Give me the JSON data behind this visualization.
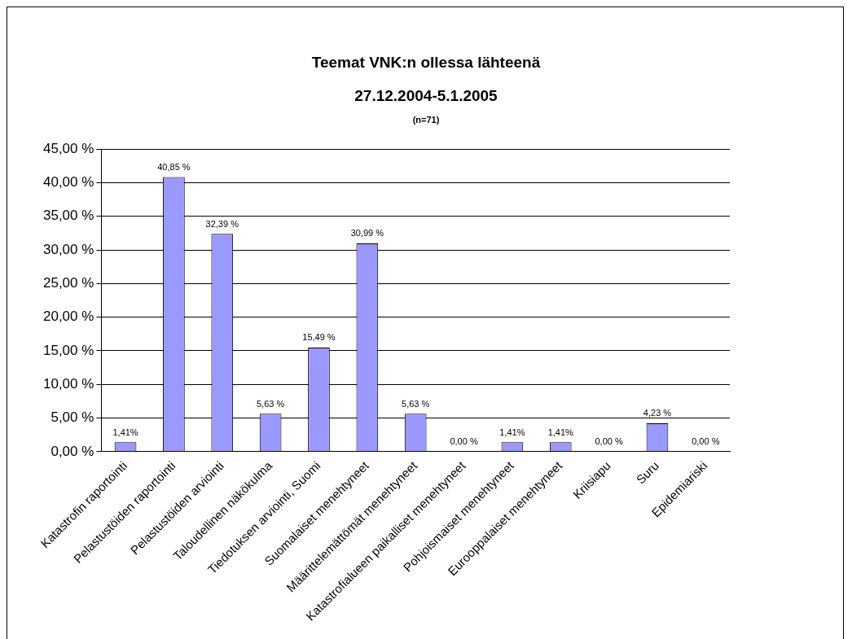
{
  "chart_data": {
    "type": "bar",
    "title": "Teemat VNK:n ollessa lähteenä",
    "subtitle": "27.12.2004-5.1.2005",
    "annotations": [
      "(n=71)"
    ],
    "categories": [
      "Katastrofin raportointi",
      "Pelastustöiden raportointi",
      "Pelastustöiden arviointi",
      "Taloudellinen näkökulma",
      "Tiedotuksen arviointi, Suomi",
      "Suomalaiset menehtyneet",
      "Määrittelemättömät menehtyneet",
      "Katastrofialueen paikalliset menehtyneet",
      "Pohjoismaiset menehtyneet",
      "Eurooppalaiset menehtyneet",
      "Kriisiapu",
      "Suru",
      "Epidemiariski"
    ],
    "values": [
      1.41,
      40.85,
      32.39,
      5.63,
      15.49,
      30.99,
      5.63,
      0,
      1.41,
      1.41,
      0,
      4.23,
      0
    ],
    "value_labels": [
      "1,41%",
      "40,85 %",
      "32,39 %",
      "5,63 %",
      "15,49 %",
      "30,99 %",
      "5,63 %",
      "0,00 %",
      "1,41%",
      "1,41%",
      "0,00 %",
      "4,23 %",
      "0,00 %"
    ],
    "color": "#9999ff",
    "ylim": [
      0,
      45
    ],
    "yticks": [
      {
        "value": 0,
        "label": "0,00 %"
      },
      {
        "value": 5,
        "label": "5,00 %"
      },
      {
        "value": 10,
        "label": "10,00 %"
      },
      {
        "value": 15,
        "label": "15,00 %"
      },
      {
        "value": 20,
        "label": "20,00 %"
      },
      {
        "value": 25,
        "label": "25,00 %"
      },
      {
        "value": 30,
        "label": "30,00 %"
      },
      {
        "value": 35,
        "label": "35,00 %"
      },
      {
        "value": 40,
        "label": "40,00 %"
      },
      {
        "value": 45,
        "label": "45,00 %"
      }
    ],
    "grid": "y",
    "legend": false
  }
}
